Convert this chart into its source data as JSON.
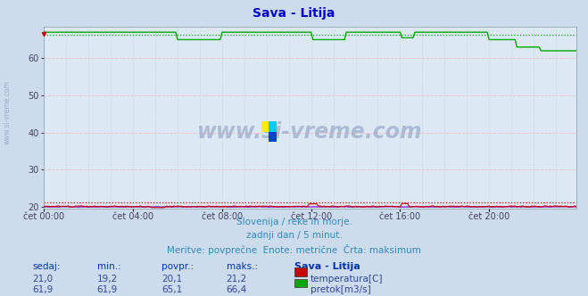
{
  "title": "Sava - Litija",
  "bg_color": "#ccdcec",
  "plot_bg_color": "#dce8f4",
  "grid_color_h": "#f0c0c0",
  "grid_color_v": "#d0d8e8",
  "title_color": "#0000cc",
  "axis_tick_color": "#404060",
  "ylim": [
    19.5,
    68.5
  ],
  "yticks": [
    20,
    30,
    40,
    50,
    60
  ],
  "xtick_labels": [
    "čet 00:00",
    "čet 04:00",
    "čet 08:00",
    "čet 12:00",
    "čet 16:00",
    "čet 20:00"
  ],
  "n_points": 288,
  "temp_color": "#cc0000",
  "flow_color": "#00aa00",
  "height_color": "#6600cc",
  "temp_max": 21.2,
  "temp_min": 19.2,
  "flow_max": 66.4,
  "flow_min": 61.9,
  "subtitle1": "Slovenija / reke in morje.",
  "subtitle2": "zadnji dan / 5 minut.",
  "subtitle3": "Meritve: povprečne  Enote: metrične  Črta: maksimum",
  "footer_color": "#3388bb",
  "legend_title": "Sava - Litija",
  "legend_entries": [
    {
      "label": "temperatura[C]",
      "color": "#cc0000"
    },
    {
      "label": "pretok[m3/s]",
      "color": "#00aa00"
    }
  ],
  "stats_headers": [
    "sedaj:",
    "min.:",
    "povpr.:",
    "maks.:",
    "Sava - Litija"
  ],
  "stats_temp": [
    "21,0",
    "19,2",
    "20,1",
    "21,2"
  ],
  "stats_flow": [
    "61,9",
    "61,9",
    "65,1",
    "66,4"
  ],
  "watermark": "www.si-vreme.com",
  "left_label": "www.si-vreme.com"
}
